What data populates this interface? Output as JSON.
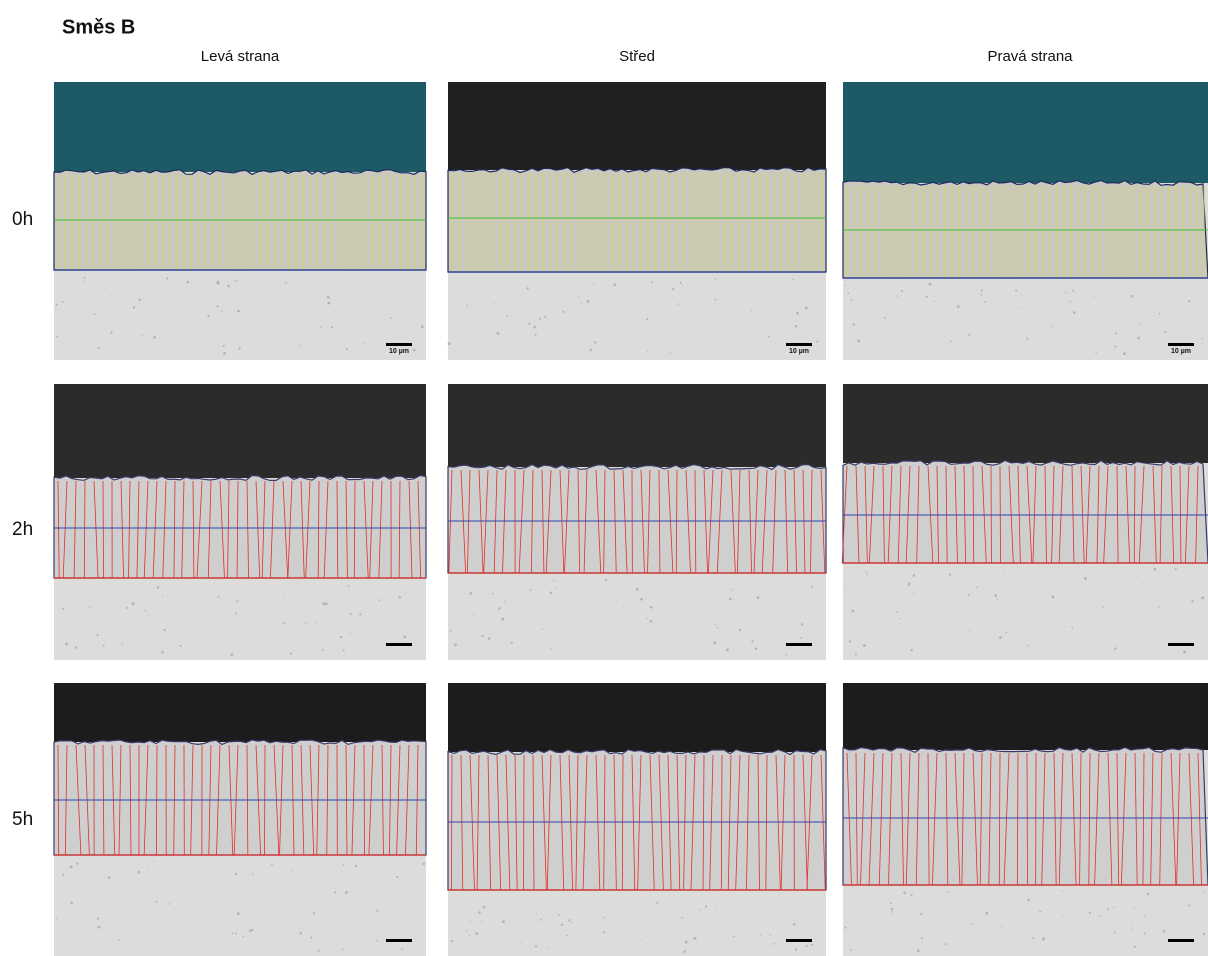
{
  "title": "Směs B",
  "columns": [
    "Levá strana",
    "Střed",
    "Pravá strana"
  ],
  "rows": [
    {
      "label": "0h",
      "scale_labels": [
        "10 µm",
        "10 µm",
        "10 µm"
      ]
    },
    {
      "label": "2h"
    },
    {
      "label": "5h"
    }
  ]
}
